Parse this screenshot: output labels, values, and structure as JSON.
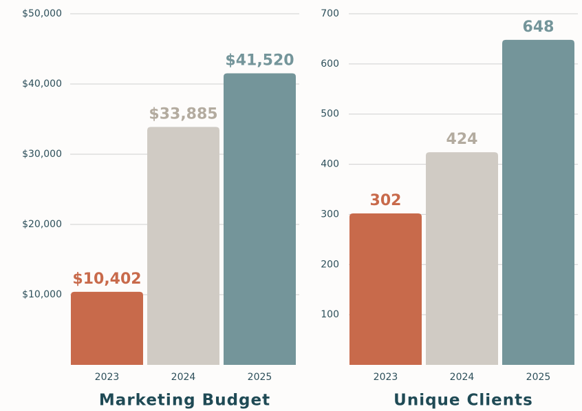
{
  "chart_data": [
    {
      "type": "bar",
      "title": "Marketing Budget",
      "categories": [
        "2023",
        "2024",
        "2025"
      ],
      "values": [
        10402,
        33885,
        41520
      ],
      "value_labels": [
        "$10,402",
        "$33,885",
        "$41,520"
      ],
      "colors": [
        "#c86a4b",
        "#d0cbc4",
        "#74959a"
      ],
      "label_colors": [
        "#c86a4b",
        "#b3ab9f",
        "#74959a"
      ],
      "ylim": [
        0,
        50000
      ],
      "yticks": [
        {
          "value": 10000,
          "label": "$10,000"
        },
        {
          "value": 20000,
          "label": "$20,000"
        },
        {
          "value": 30000,
          "label": "$30,000"
        },
        {
          "value": 40000,
          "label": "$40,000"
        },
        {
          "value": 50000,
          "label": "$50,000"
        }
      ],
      "grid": true
    },
    {
      "type": "bar",
      "title": "Unique Clients",
      "categories": [
        "2023",
        "2024",
        "2025"
      ],
      "values": [
        302,
        424,
        648
      ],
      "colors": [
        "#c86a4b",
        "#d0cbc4",
        "#74959a"
      ],
      "label_colors": [
        "#c86a4b",
        "#b3ab9f",
        "#74959a"
      ],
      "ylim": [
        0,
        700
      ],
      "yticks": [
        100,
        200,
        300,
        400,
        500,
        600,
        700
      ],
      "grid": true
    }
  ]
}
